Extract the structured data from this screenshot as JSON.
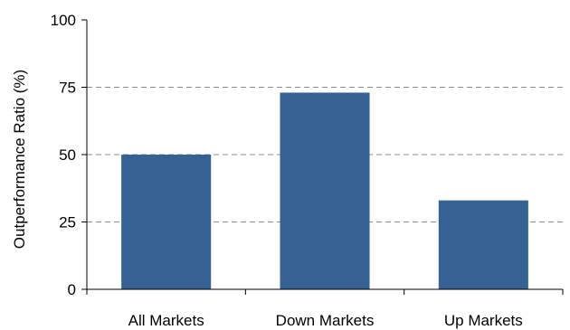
{
  "chart_data": {
    "type": "bar",
    "title": "",
    "xlabel": "",
    "ylabel": "Outperformance Ratio (%)",
    "categories": [
      "All Markets",
      "Down Markets",
      "Up Markets"
    ],
    "values": [
      50,
      73,
      33
    ],
    "ylim": [
      0,
      100
    ],
    "yticks": [
      0,
      25,
      50,
      75,
      100
    ],
    "grid": true,
    "legend": "none",
    "bar_color": "#356293"
  }
}
